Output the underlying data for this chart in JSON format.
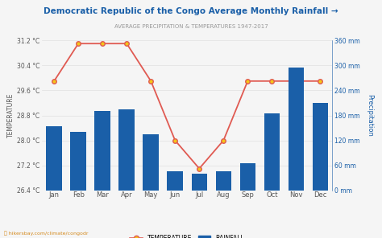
{
  "title": "Democratic Republic of the Congo Average Monthly Rainfall →",
  "subtitle": "AVERAGE PRECIPITATION & TEMPERATURES 1947-2017",
  "months": [
    "Jan",
    "Feb",
    "Mar",
    "Apr",
    "May",
    "Jun",
    "Jul",
    "Aug",
    "Sep",
    "Oct",
    "Nov",
    "Dec"
  ],
  "rainfall_mm": [
    155,
    140,
    190,
    195,
    135,
    45,
    40,
    45,
    65,
    185,
    295,
    210
  ],
  "temperature_c": [
    29.9,
    31.1,
    31.1,
    31.1,
    29.9,
    28.0,
    27.1,
    28.0,
    29.9,
    29.9,
    29.9,
    29.9
  ],
  "bar_color": "#1a5fa8",
  "line_color": "#e05a52",
  "marker_facecolor": "#f5c518",
  "marker_edgecolor": "#e05a52",
  "bg_color": "#f5f5f5",
  "temp_ylim": [
    26.4,
    31.2
  ],
  "temp_yticks": [
    26.4,
    27.2,
    28.0,
    28.8,
    29.6,
    30.4,
    31.2
  ],
  "precip_ylim": [
    0,
    360
  ],
  "precip_yticks": [
    0,
    60,
    120,
    180,
    240,
    300,
    360
  ],
  "left_ylabel": "TEMPERATURE",
  "right_ylabel": "Precipitation",
  "watermark": "hikersbay.com/climate/congodr",
  "title_color": "#1a5fa8",
  "subtitle_color": "#999999",
  "left_tick_color": "#555555",
  "right_tick_color": "#1a5fa8",
  "grid_color": "#e0e0e0",
  "legend_temp_label": "TEMPERATURE",
  "legend_rain_label": "RAINFALL"
}
